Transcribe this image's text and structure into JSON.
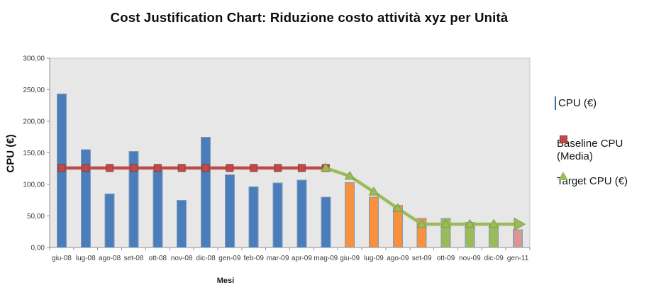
{
  "header": {
    "title": "Cost Justification Chart: Riduzione costo attività xyz per Unità"
  },
  "axes": {
    "y_title": "CPU (€)",
    "x_title": "Mesi"
  },
  "legend": {
    "position": "right",
    "items": [
      {
        "label": "CPU (€)",
        "marker": "rect",
        "color": "#4A7EBB"
      },
      {
        "label": "Baseline CPU (Media)",
        "marker": "line-square",
        "color": "#BE4B48"
      },
      {
        "label": "Target  CPU (€)",
        "marker": "line-triangle",
        "color": "#9BBB59"
      }
    ]
  },
  "chart_data": {
    "type": "bar",
    "title": "Cost Justification Chart: Riduzione costo attività xyz per Unità",
    "xlabel": "Mesi",
    "ylabel": "CPU (€)",
    "ylim": [
      0,
      300
    ],
    "ytick_step": 50,
    "ytick_labels": [
      "0,00",
      "50,00",
      "100,00",
      "150,00",
      "200,00",
      "250,00",
      "300,00"
    ],
    "grid": false,
    "legend_position": "right",
    "categories": [
      "giu-08",
      "lug-08",
      "ago-08",
      "set-08",
      "ott-08",
      "nov-08",
      "dic-08",
      "gen-09",
      "feb-09",
      "mar-09",
      "apr-09",
      "mag-09",
      "giu-09",
      "lug-09",
      "ago-09",
      "set-09",
      "ott-09",
      "nov-09",
      "dic-09",
      "gen-11"
    ],
    "series": [
      {
        "name": "CPU (€)",
        "type": "bar",
        "values": [
          243,
          155,
          85,
          152,
          122,
          75,
          175,
          115,
          96,
          102,
          107,
          80,
          103,
          80,
          67,
          46,
          46,
          40,
          38,
          28
        ],
        "bar_colors": [
          "#4A7EBB",
          "#4A7EBB",
          "#4A7EBB",
          "#4A7EBB",
          "#4A7EBB",
          "#4A7EBB",
          "#4A7EBB",
          "#4A7EBB",
          "#4A7EBB",
          "#4A7EBB",
          "#4A7EBB",
          "#4A7EBB",
          "#F79140",
          "#F79140",
          "#F79140",
          "#F79140",
          "#9BBB59",
          "#9BBB59",
          "#9BBB59",
          "#D99694"
        ]
      },
      {
        "name": "Baseline CPU (Media)",
        "type": "line",
        "marker": "square",
        "color": "#BE4B48",
        "start_index": 0,
        "values": [
          126,
          126,
          126,
          126,
          126,
          126,
          126,
          126,
          126,
          126,
          126,
          126
        ]
      },
      {
        "name": "Target  CPU (€)",
        "type": "line",
        "marker": "triangle-up",
        "end_marker": "arrow-right",
        "color": "#9BBB59",
        "start_index": 11,
        "values": [
          126,
          113,
          88,
          62,
          37,
          37,
          37,
          37,
          37
        ]
      }
    ],
    "style": {
      "plot_bg": "#E7E7E7",
      "plot_border": "#C9C9C9",
      "axis_line": "#8F8F8F",
      "tick_text": "#3C3C3C",
      "bar_stroke": "#8499B8",
      "baseline_marker_stroke": "#953735",
      "target_marker_stroke": "#7E9A44"
    }
  }
}
